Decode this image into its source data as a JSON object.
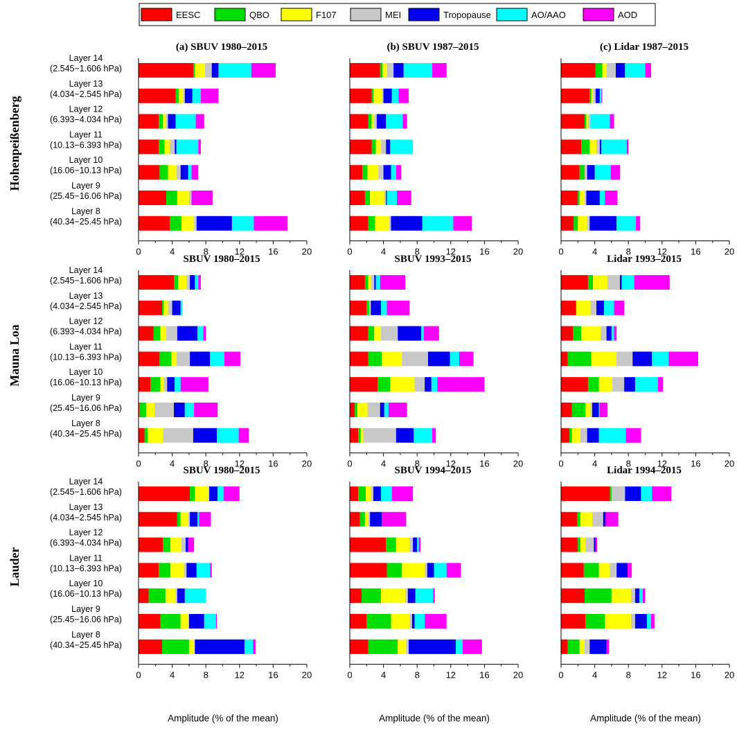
{
  "legend_items": [
    {
      "name": "EESC",
      "color": "#ff0000"
    },
    {
      "name": "QBO",
      "color": "#00dd00"
    },
    {
      "name": "F107",
      "color": "#ffff00"
    },
    {
      "name": "MEI",
      "color": "#c8c8c8"
    },
    {
      "name": "Tropopause",
      "color": "#0000ee"
    },
    {
      "name": "AO/AAO",
      "color": "#00ffff"
    },
    {
      "name": "AOD",
      "color": "#ff00ff"
    }
  ],
  "layer_names": [
    "Layer 14",
    "Layer 13",
    "Layer 12",
    "Layer 11",
    "Layer 10",
    "Layer 9",
    "Layer 8"
  ],
  "layer_ranges": [
    "(2.545−1.606 hPa)",
    "(4.034−2.545 hPa)",
    "(6.393−4.034 hPa)",
    "(10.13−6.393 hPa)",
    "(16.06−10.13 hPa)",
    "(25.45−16.06 hPa)",
    "(40.34−25.45 hPa)"
  ],
  "stations": [
    "Hohenpeißenberg",
    "Mauna Loa",
    "Lauder"
  ],
  "xlabel": "Amplitude (% of the mean)",
  "xticks": [
    0,
    4,
    8,
    12,
    16,
    20
  ],
  "chart_data": {
    "type": "bar",
    "orientation": "horizontal",
    "stacked": true,
    "xlim": [
      0,
      20
    ],
    "series_names": [
      "EESC",
      "QBO",
      "F107",
      "MEI",
      "Tropopause",
      "AO/AAO",
      "AOD"
    ],
    "categories": [
      "Layer 14",
      "Layer 13",
      "Layer 12",
      "Layer 11",
      "Layer 10",
      "Layer 9",
      "Layer 8"
    ],
    "panels": [
      {
        "station": "Hohenpeißenberg",
        "title": "(a)  SBUV 1980–2015",
        "values": [
          [
            6.5,
            0.2,
            1.2,
            0.8,
            0.8,
            3.9,
            2.9
          ],
          [
            4.4,
            0.4,
            0.5,
            0.2,
            0.9,
            1.0,
            2.1
          ],
          [
            2.4,
            0.5,
            0.3,
            0.3,
            0.9,
            2.4,
            1.0
          ],
          [
            2.4,
            0.7,
            0.6,
            0.6,
            0.2,
            2.6,
            0.3
          ],
          [
            2.5,
            1.0,
            1.0,
            0.5,
            0.9,
            0.4,
            0.8
          ],
          [
            3.3,
            1.3,
            1.4,
            0.3,
            0.0,
            0.0,
            2.5
          ],
          [
            3.7,
            1.4,
            1.5,
            0.3,
            4.2,
            2.6,
            4.0
          ]
        ]
      },
      {
        "station": "Hohenpeißenberg",
        "title": "(b)  SBUV 1987–2015",
        "values": [
          [
            3.6,
            0.3,
            0.5,
            0.8,
            1.2,
            3.4,
            1.7
          ],
          [
            2.6,
            0.2,
            1.0,
            0.2,
            1.0,
            0.8,
            1.2
          ],
          [
            2.2,
            0.4,
            0.3,
            0.3,
            1.1,
            2.0,
            0.5
          ],
          [
            2.6,
            0.5,
            0.6,
            0.6,
            0.5,
            2.7,
            0.0
          ],
          [
            1.5,
            0.6,
            1.3,
            0.6,
            0.9,
            0.6,
            0.6
          ],
          [
            1.8,
            0.6,
            1.7,
            0.2,
            0.1,
            1.2,
            1.7
          ],
          [
            2.2,
            0.8,
            1.7,
            0.2,
            3.7,
            3.7,
            2.2
          ]
        ]
      },
      {
        "station": "Hohenpeißenberg",
        "title": "(c)  Lidar 1987–2015",
        "values": [
          [
            4.1,
            0.8,
            0.5,
            1.1,
            1.1,
            2.4,
            0.7
          ],
          [
            3.4,
            0.2,
            0.2,
            0.3,
            0.5,
            0.2,
            0.1
          ],
          [
            2.8,
            0.2,
            0.2,
            0.3,
            0.0,
            2.3,
            0.5
          ],
          [
            2.4,
            1.0,
            0.8,
            0.4,
            0.2,
            3.0,
            0.2
          ],
          [
            2.2,
            0.6,
            0.0,
            0.3,
            0.9,
            1.9,
            1.1
          ],
          [
            2.0,
            0.2,
            0.6,
            0.2,
            1.6,
            0.6,
            1.5
          ],
          [
            1.5,
            0.5,
            1.1,
            0.3,
            3.2,
            2.3,
            0.5
          ]
        ]
      },
      {
        "station": "Mauna Loa",
        "title": "SBUV 1980–2015",
        "values": [
          [
            4.2,
            0.5,
            1.0,
            0.4,
            0.6,
            0.4,
            0.3
          ],
          [
            2.8,
            0.2,
            0.5,
            0.5,
            1.0,
            0.2,
            0.0
          ],
          [
            1.8,
            0.8,
            0.7,
            1.3,
            2.4,
            0.7,
            0.3
          ],
          [
            2.5,
            1.4,
            0.6,
            1.6,
            2.4,
            1.7,
            1.9
          ],
          [
            1.4,
            1.2,
            0.4,
            0.4,
            0.9,
            0.7,
            3.3
          ],
          [
            0.1,
            0.8,
            1.0,
            2.3,
            1.3,
            1.1,
            2.8
          ],
          [
            0.7,
            0.4,
            1.8,
            3.6,
            2.8,
            2.6,
            1.2
          ]
        ]
      },
      {
        "station": "Mauna Loa",
        "title": "SBUV 1993–2015",
        "values": [
          [
            1.8,
            0.4,
            0.3,
            0.4,
            0.2,
            0.5,
            3.0
          ],
          [
            2.0,
            0.3,
            0.0,
            0.2,
            1.2,
            0.7,
            2.7
          ],
          [
            2.2,
            0.7,
            0.8,
            2.0,
            2.8,
            0.3,
            1.8
          ],
          [
            2.2,
            1.6,
            2.4,
            3.1,
            2.6,
            1.1,
            1.7
          ],
          [
            3.3,
            1.5,
            2.9,
            1.2,
            0.8,
            0.7,
            5.6
          ],
          [
            0.6,
            0.3,
            1.2,
            1.5,
            0.5,
            0.5,
            2.2
          ],
          [
            1.0,
            0.3,
            0.3,
            3.9,
            2.1,
            2.2,
            0.4
          ]
        ]
      },
      {
        "station": "Mauna Loa",
        "title": "Lidar 1993–2015",
        "values": [
          [
            3.2,
            0.6,
            1.7,
            1.5,
            0.2,
            1.5,
            4.2
          ],
          [
            1.8,
            0.0,
            1.7,
            0.7,
            0.9,
            1.2,
            1.2
          ],
          [
            1.4,
            1.0,
            2.3,
            0.7,
            0.6,
            0.3,
            0.3
          ],
          [
            0.8,
            2.8,
            3.0,
            1.9,
            2.3,
            2.0,
            3.5
          ],
          [
            3.2,
            1.3,
            1.6,
            1.4,
            1.3,
            2.7,
            0.6
          ],
          [
            1.3,
            1.6,
            0.6,
            0.2,
            0.8,
            0.1,
            0.9
          ],
          [
            1.0,
            0.3,
            1.0,
            0.8,
            1.4,
            3.2,
            1.8
          ]
        ]
      },
      {
        "station": "Lauder",
        "title": "SBUV 1980–2015",
        "values": [
          [
            6.1,
            0.6,
            1.6,
            0.1,
            1.0,
            0.7,
            1.9
          ],
          [
            4.6,
            0.4,
            0.9,
            0.2,
            0.9,
            0.2,
            1.4
          ],
          [
            2.9,
            0.9,
            1.3,
            0.5,
            0.3,
            0.0,
            0.7
          ],
          [
            2.4,
            1.4,
            1.6,
            0.3,
            1.2,
            1.6,
            0.2
          ],
          [
            1.2,
            2.0,
            1.2,
            0.2,
            0.9,
            2.5,
            0.0
          ],
          [
            2.6,
            2.4,
            0.9,
            0.1,
            1.8,
            1.4,
            0.1
          ],
          [
            2.8,
            3.2,
            0.6,
            0.1,
            5.9,
            1.0,
            0.3
          ]
        ]
      },
      {
        "station": "Lauder",
        "title": "SBUV 1994–2015",
        "values": [
          [
            1.0,
            0.9,
            0.6,
            0.3,
            0.9,
            1.3,
            2.5
          ],
          [
            1.2,
            0.6,
            0.4,
            0.2,
            1.4,
            0.0,
            2.9
          ],
          [
            4.3,
            1.2,
            1.6,
            0.4,
            0.5,
            0.2,
            0.2
          ],
          [
            4.4,
            1.8,
            2.7,
            0.3,
            0.8,
            1.5,
            1.7
          ],
          [
            1.4,
            2.3,
            2.9,
            0.3,
            0.9,
            2.1,
            0.2
          ],
          [
            2.0,
            2.9,
            2.2,
            0.3,
            0.3,
            1.2,
            2.6
          ],
          [
            2.2,
            3.5,
            1.0,
            0.3,
            5.6,
            0.8,
            2.3
          ]
        ]
      },
      {
        "station": "Lauder",
        "title": "Lidar 1994–2015",
        "values": [
          [
            5.8,
            0.2,
            0.0,
            1.6,
            1.9,
            1.3,
            2.3
          ],
          [
            1.9,
            0.4,
            1.4,
            1.3,
            0.3,
            0.0,
            1.5
          ],
          [
            2.0,
            0.3,
            0.6,
            1.0,
            0.2,
            0.0,
            0.2
          ],
          [
            2.7,
            1.8,
            1.3,
            0.8,
            1.3,
            0.0,
            0.5
          ],
          [
            2.8,
            3.2,
            2.3,
            0.5,
            0.5,
            0.4,
            0.3
          ],
          [
            2.9,
            2.3,
            3.1,
            0.5,
            1.4,
            0.5,
            0.4
          ],
          [
            0.8,
            1.4,
            0.6,
            0.6,
            2.0,
            0.0,
            0.3
          ]
        ]
      }
    ]
  }
}
